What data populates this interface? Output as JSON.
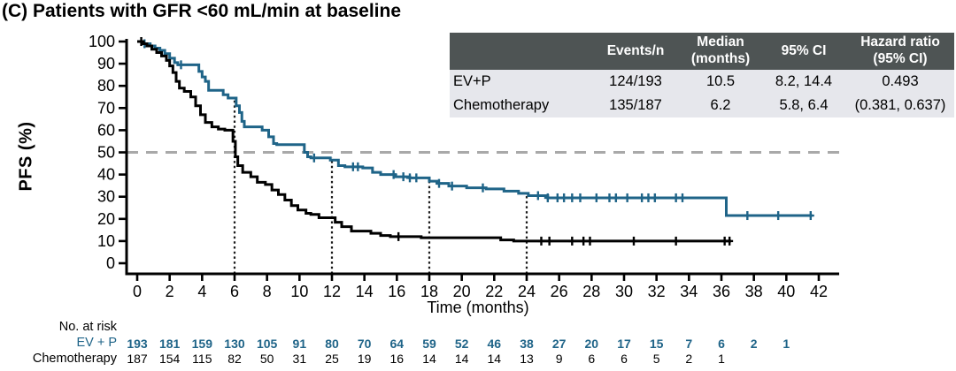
{
  "title": "(C) Patients with GFR <60 mL/min at baseline",
  "colors": {
    "evp_blue": "#1f6488",
    "chemo_black": "#000000",
    "axis": "#000000",
    "reference_dash": "#a9a9a9",
    "landmark_dot": "#1a1a1a",
    "table_header_bg": "#4e5454",
    "table_header_text": "#ffffff",
    "table_row_bg": "#e6e7ec"
  },
  "summary_table": {
    "headers": [
      "",
      "Events/n",
      "Median\n(months)",
      "95% CI",
      "Hazard ratio\n(95% CI)"
    ],
    "rows": [
      [
        "EV+P",
        "124/193",
        "10.5",
        "8.2, 14.4",
        "0.493"
      ],
      [
        "Chemotherapy",
        "135/187",
        "6.2",
        "5.8, 6.4",
        "(0.381, 0.637)"
      ]
    ]
  },
  "chart_data": {
    "type": "line",
    "subtype": "kaplan-meier-step",
    "title": "",
    "xlabel": "Time (months)",
    "ylabel": "PFS (%)",
    "xlim": [
      0,
      42
    ],
    "ylim": [
      0,
      100
    ],
    "x_ticks": [
      0,
      2,
      4,
      6,
      8,
      10,
      12,
      14,
      16,
      18,
      20,
      22,
      24,
      26,
      28,
      30,
      32,
      34,
      36,
      38,
      40,
      42
    ],
    "y_ticks": [
      0,
      10,
      20,
      30,
      40,
      50,
      60,
      70,
      80,
      90,
      100
    ],
    "grid": false,
    "reference_line_y": 50,
    "landmark_lines_x": [
      6,
      12,
      18,
      24
    ],
    "series": [
      {
        "name": "EV + P",
        "color": "#1f6488",
        "steps": [
          [
            0,
            100
          ],
          [
            0.4,
            99
          ],
          [
            0.8,
            98
          ],
          [
            1.1,
            97
          ],
          [
            1.4,
            96
          ],
          [
            1.7,
            94.5
          ],
          [
            2.0,
            92.5
          ],
          [
            2.3,
            90.5
          ],
          [
            2.5,
            89.5
          ],
          [
            3.8,
            86.5
          ],
          [
            4.0,
            84
          ],
          [
            4.2,
            82
          ],
          [
            4.4,
            78
          ],
          [
            5.3,
            76
          ],
          [
            5.6,
            74.5
          ],
          [
            6.1,
            71
          ],
          [
            6.3,
            68
          ],
          [
            6.45,
            64
          ],
          [
            6.6,
            61.5
          ],
          [
            7.7,
            60
          ],
          [
            8.1,
            57
          ],
          [
            8.4,
            54
          ],
          [
            8.6,
            53.5
          ],
          [
            10.3,
            50
          ],
          [
            10.5,
            48
          ],
          [
            10.7,
            47.5
          ],
          [
            11.9,
            46.5
          ],
          [
            12.4,
            44
          ],
          [
            12.8,
            43.5
          ],
          [
            13.9,
            43
          ],
          [
            14.5,
            41
          ],
          [
            15.0,
            40
          ],
          [
            15.9,
            39
          ],
          [
            16.8,
            38.5
          ],
          [
            18.0,
            37
          ],
          [
            18.5,
            36
          ],
          [
            19.2,
            34.8
          ],
          [
            20.3,
            34
          ],
          [
            21.5,
            33.5
          ],
          [
            22.6,
            32.5
          ],
          [
            23.5,
            31.5
          ],
          [
            24.1,
            30.5
          ],
          [
            25.3,
            29.5
          ],
          [
            36.3,
            21.5
          ]
        ],
        "end_t": 41.6,
        "censor_t": [
          0.45,
          2.7,
          10.9,
          13.3,
          13.6,
          15.8,
          16.4,
          16.8,
          17.2,
          18.6,
          19.4,
          21.3,
          24.7,
          25.3,
          25.9,
          26.3,
          26.8,
          27.3,
          28.3,
          29.1,
          29.5,
          30.2,
          31.1,
          31.5,
          31.9,
          33.2,
          33.6,
          37.6,
          39.5,
          41.5
        ]
      },
      {
        "name": "Chemotherapy",
        "color": "#000000",
        "steps": [
          [
            0,
            100
          ],
          [
            0.3,
            99
          ],
          [
            0.6,
            98
          ],
          [
            0.9,
            96.5
          ],
          [
            1.2,
            95
          ],
          [
            1.5,
            93.5
          ],
          [
            1.8,
            91.5
          ],
          [
            2.0,
            89
          ],
          [
            2.2,
            86
          ],
          [
            2.4,
            82
          ],
          [
            2.6,
            79
          ],
          [
            2.9,
            77.5
          ],
          [
            3.3,
            75
          ],
          [
            3.6,
            71
          ],
          [
            3.9,
            67
          ],
          [
            4.2,
            63.5
          ],
          [
            4.6,
            61.5
          ],
          [
            5.0,
            60.5
          ],
          [
            5.4,
            60
          ],
          [
            5.9,
            55
          ],
          [
            6.05,
            48
          ],
          [
            6.2,
            44
          ],
          [
            6.5,
            41
          ],
          [
            7.0,
            39
          ],
          [
            7.4,
            36.5
          ],
          [
            7.9,
            35.5
          ],
          [
            8.3,
            33
          ],
          [
            8.7,
            31
          ],
          [
            9.1,
            28.5
          ],
          [
            9.5,
            26
          ],
          [
            9.9,
            24
          ],
          [
            10.4,
            22.5
          ],
          [
            10.7,
            22
          ],
          [
            11.2,
            20.5
          ],
          [
            12.2,
            18.5
          ],
          [
            12.6,
            16.5
          ],
          [
            13.2,
            14.5
          ],
          [
            14.4,
            13.5
          ],
          [
            15.0,
            12.5
          ],
          [
            15.6,
            12
          ],
          [
            17.5,
            11.5
          ],
          [
            22.4,
            10.5
          ],
          [
            23.2,
            10
          ]
        ],
        "end_t": 36.6,
        "censor_t": [
          0.25,
          16.1,
          24.9,
          25.4,
          26.8,
          27.5,
          27.9,
          30.6,
          33.2,
          36.2,
          36.5
        ]
      }
    ]
  },
  "risk_table": {
    "label": "No. at risk",
    "times": [
      0,
      2,
      4,
      6,
      8,
      10,
      12,
      14,
      16,
      18,
      20,
      22,
      24,
      26,
      28,
      30,
      32,
      34,
      36,
      38,
      40
    ],
    "rows": [
      {
        "name": "EV + P",
        "color": "#1f6488",
        "bold": true,
        "values": [
          193,
          181,
          159,
          130,
          105,
          91,
          80,
          70,
          64,
          59,
          52,
          46,
          38,
          27,
          20,
          17,
          15,
          7,
          6,
          2,
          1
        ]
      },
      {
        "name": "Chemotherapy",
        "color": "#000000",
        "bold": false,
        "values": [
          187,
          154,
          115,
          82,
          50,
          31,
          25,
          19,
          16,
          14,
          14,
          14,
          13,
          9,
          6,
          6,
          5,
          2,
          1
        ]
      }
    ]
  }
}
